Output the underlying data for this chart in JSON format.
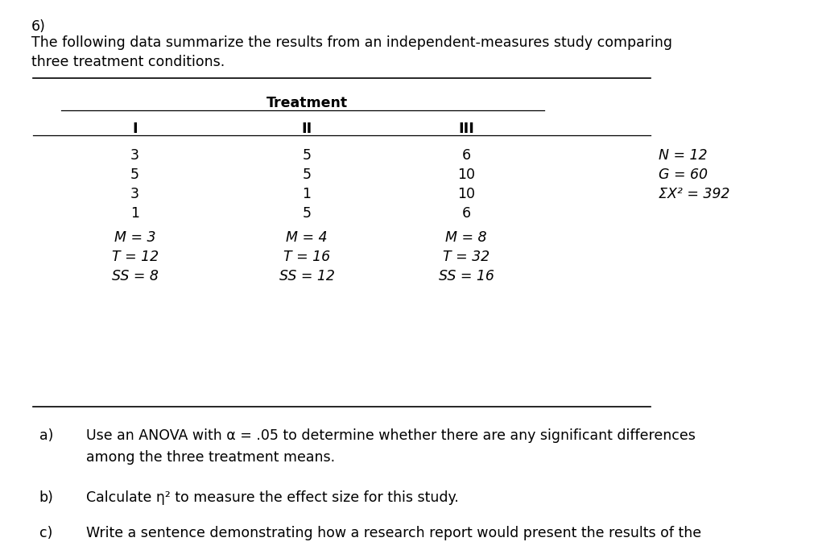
{
  "title_number": "6)",
  "intro_line1": "The following data summarize the results from an independent-measures study comparing",
  "intro_line2": "three treatment conditions.",
  "treatment_header": "Treatment",
  "col_headers": [
    "I",
    "II",
    "III"
  ],
  "data_rows": [
    [
      "3",
      "5",
      "6"
    ],
    [
      "5",
      "5",
      "10"
    ],
    [
      "3",
      "1",
      "10"
    ],
    [
      "1",
      "5",
      "6"
    ]
  ],
  "summary_rows": [
    [
      "M = 3",
      "M = 4",
      "M = 8"
    ],
    [
      "T = 12",
      "T = 16",
      "T = 32"
    ],
    [
      "SS = 8",
      "SS = 12",
      "SS = 16"
    ]
  ],
  "side_notes": [
    "N = 12",
    "G = 60",
    "ΣX² = 392"
  ],
  "questions": [
    [
      "a)",
      "Use an ANOVA with α = .05 to determine whether there are any significant differences\namong the three treatment means."
    ],
    [
      "b)",
      "Calculate η² to measure the effect size for this study."
    ],
    [
      "c)",
      "Write a sentence demonstrating how a research report would present the results of the\nhypothesis test and the measure of effect size."
    ]
  ],
  "bg_color": "#ffffff",
  "text_color": "#000000",
  "font_size": 12.5
}
